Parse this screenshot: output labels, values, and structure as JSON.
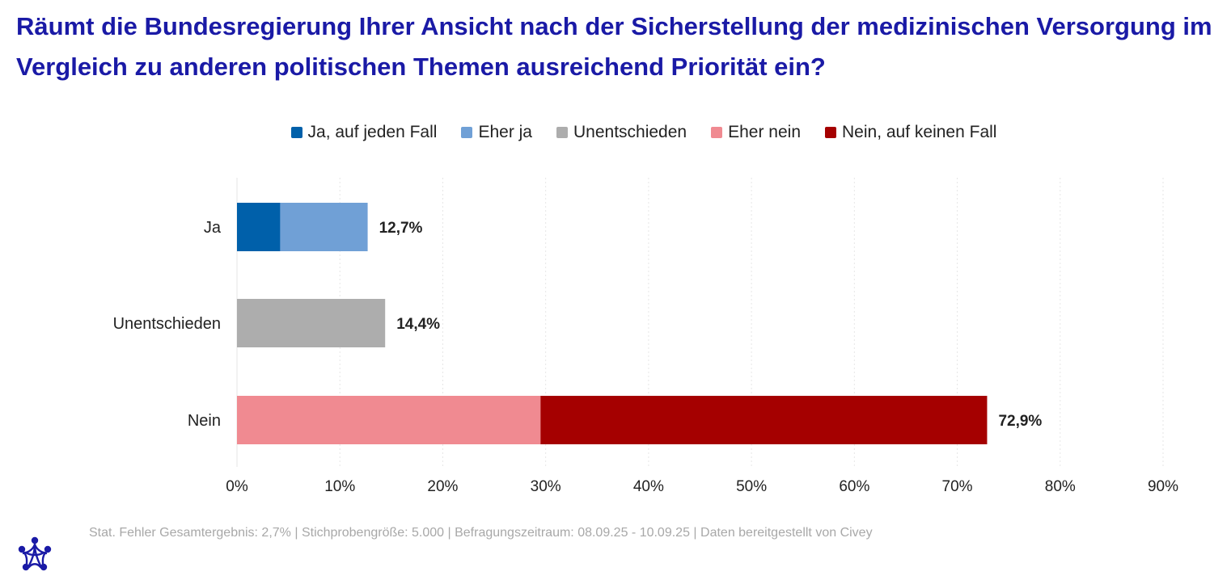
{
  "title": "Räumt die Bundesregierung Ihrer Ansicht nach der Sicherstellung der medizinischen Versorgung im Vergleich zu anderen politischen Themen ausreichend Priorität ein?",
  "legend": [
    {
      "label": "Ja, auf jeden Fall",
      "color": "#0060aa"
    },
    {
      "label": "Eher ja",
      "color": "#70a0d6"
    },
    {
      "label": "Unentschieden",
      "color": "#adadad"
    },
    {
      "label": "Eher nein",
      "color": "#f08a91"
    },
    {
      "label": "Nein, auf keinen Fall",
      "color": "#a50000"
    }
  ],
  "chart_data": {
    "type": "bar",
    "orientation": "horizontal",
    "stacked": true,
    "categories": [
      "Ja",
      "Unentschieden",
      "Nein"
    ],
    "series": [
      {
        "name": "Ja, auf jeden Fall",
        "color": "#0060aa",
        "values": [
          4.2,
          0,
          0
        ]
      },
      {
        "name": "Eher ja",
        "color": "#70a0d6",
        "values": [
          8.5,
          0,
          0
        ]
      },
      {
        "name": "Unentschieden",
        "color": "#adadad",
        "values": [
          0,
          14.4,
          0
        ]
      },
      {
        "name": "Eher nein",
        "color": "#f08a91",
        "values": [
          0,
          0,
          29.5
        ]
      },
      {
        "name": "Nein, auf keinen Fall",
        "color": "#a50000",
        "values": [
          0,
          0,
          43.4
        ]
      }
    ],
    "totals": [
      12.7,
      14.4,
      72.9
    ],
    "total_labels": [
      "12,7%",
      "14,4%",
      "72,9%"
    ],
    "xlim": [
      0,
      90
    ],
    "xticks": [
      0,
      10,
      20,
      30,
      40,
      50,
      60,
      70,
      80,
      90
    ],
    "xtick_labels": [
      "0%",
      "10%",
      "20%",
      "30%",
      "40%",
      "50%",
      "60%",
      "70%",
      "80%",
      "90%"
    ],
    "grid": "vertical, dotted",
    "legend_position": "top"
  },
  "footer": "Stat. Fehler Gesamtergebnis: 2,7% | Stichprobengröße: 5.000 | Befragungszeitraum: 08.09.25 - 10.09.25 | Daten bereitgestellt von Civey",
  "logo_icon": "civey-logo-icon"
}
